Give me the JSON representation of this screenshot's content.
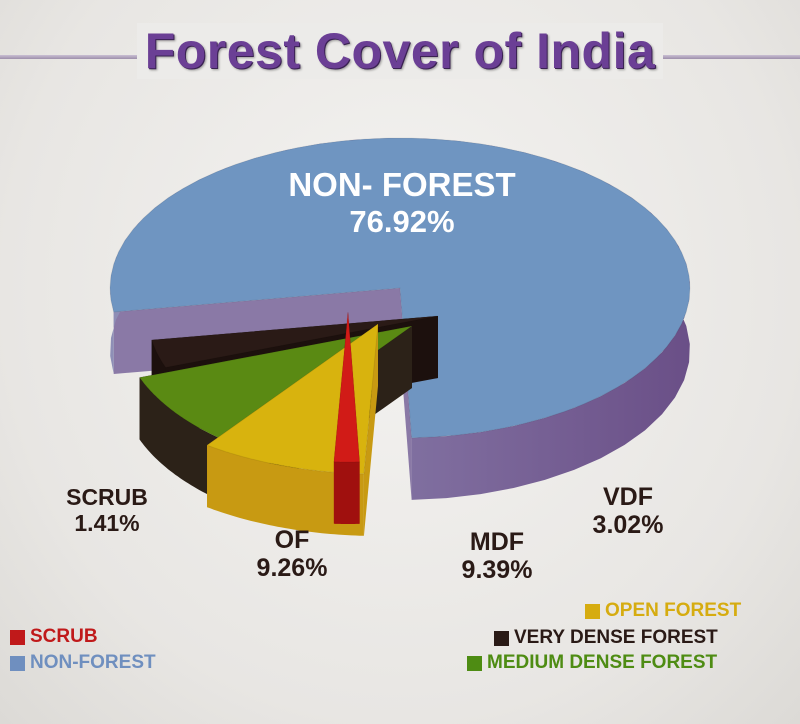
{
  "title": "Forest Cover of India",
  "chart_data": {
    "type": "pie",
    "title": "Forest Cover of India",
    "slices": [
      {
        "key": "non_forest",
        "label": "NON- FOREST",
        "value": 76.92,
        "value_label": "76.92%",
        "color": "#6f95c1",
        "side_color": "#8a79a6",
        "text_color": "#ffffff"
      },
      {
        "key": "vdf",
        "label": "VDF",
        "value": 3.02,
        "value_label": "3.02%",
        "color": "#2a1a16",
        "side_color": "#1c100d",
        "text_color": "#2a1a16"
      },
      {
        "key": "mdf",
        "label": "MDF",
        "value": 9.39,
        "value_label": "9.39%",
        "color": "#5a8a13",
        "side_color": "#2c2218",
        "text_color": "#2a1a16"
      },
      {
        "key": "of",
        "label": "OF",
        "value": 9.26,
        "value_label": "9.26%",
        "color": "#d8b30e",
        "side_color": "#c89a12",
        "text_color": "#2a1a16"
      },
      {
        "key": "scrub",
        "label": "SCRUB",
        "value": 1.41,
        "value_label": "1.41%",
        "color": "#d11b17",
        "side_color": "#a0100e",
        "text_color": "#2a1a16"
      }
    ],
    "legend": {
      "left": [
        {
          "label": "SCRUB",
          "color": "#c0191a"
        },
        {
          "label": "NON-FOREST",
          "color": "#6f8fbf"
        }
      ],
      "right": [
        {
          "label": "OPEN FOREST",
          "color": "#d6ac10"
        },
        {
          "label": "VERY DENSE FOREST",
          "color": "#2a1a16"
        },
        {
          "label": "MEDIUM DENSE FOREST",
          "color": "#4e8c13"
        }
      ]
    }
  }
}
